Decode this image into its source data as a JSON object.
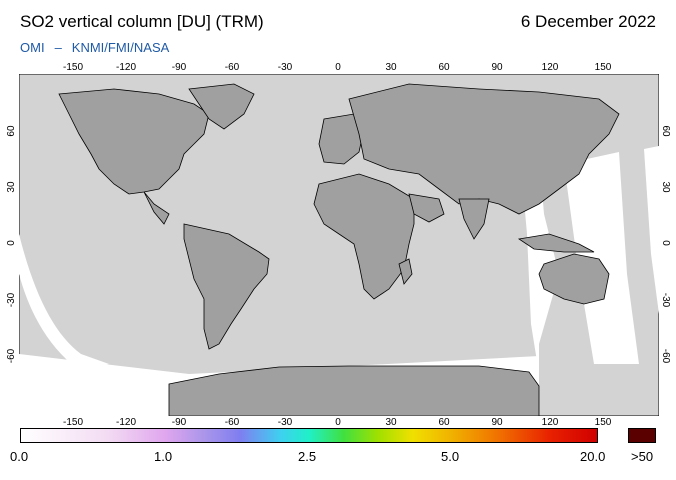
{
  "header": {
    "title": "SO2 vertical column [DU] (TRM)",
    "date": "6 December 2022",
    "instrument": "OMI",
    "separator": "–",
    "agencies": "KNMI/FMI/NASA"
  },
  "map": {
    "lon_ticks": [
      "-150",
      "-120",
      "-90",
      "-60",
      "-30",
      "0",
      "30",
      "60",
      "90",
      "120",
      "150"
    ],
    "lat_ticks": [
      "60",
      "30",
      "0",
      "-30",
      "-60"
    ],
    "colors": {
      "ocean": "#d3d3d3",
      "land": "#a0a0a0",
      "coast": "#000000",
      "no_data": "#ffffff"
    }
  },
  "colorbar": {
    "labels": [
      "0.0",
      "1.0",
      "2.5",
      "5.0",
      "20.0"
    ],
    "max_label": ">50",
    "max_color": "#5a0000"
  }
}
